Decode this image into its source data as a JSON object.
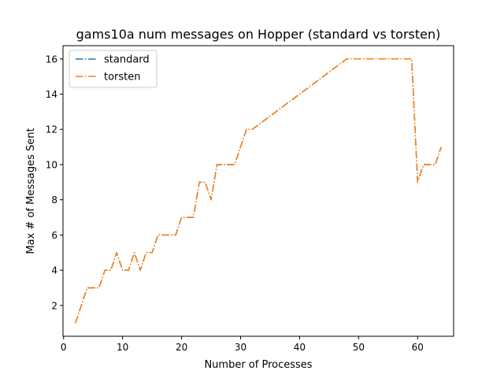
{
  "chart_data": {
    "type": "line",
    "title": "gams10a num messages on Hopper (standard vs torsten)",
    "xlabel": "Number of Processes",
    "ylabel": "Max # of Messages Sent",
    "xlim": [
      -0.1,
      66.1
    ],
    "ylim": [
      0.25,
      16.75
    ],
    "xticks": [
      0,
      10,
      20,
      30,
      40,
      50,
      60
    ],
    "yticks": [
      2,
      4,
      6,
      8,
      10,
      12,
      14,
      16
    ],
    "legend_position": "upper-left",
    "grid": false,
    "x": [
      2,
      3,
      4,
      5,
      6,
      7,
      8,
      9,
      10,
      11,
      12,
      13,
      14,
      15,
      16,
      17,
      18,
      19,
      20,
      21,
      22,
      23,
      24,
      25,
      26,
      27,
      28,
      29,
      30,
      31,
      32,
      48,
      49,
      50,
      51,
      52,
      53,
      54,
      55,
      56,
      57,
      58,
      59,
      60,
      61,
      62,
      63,
      64
    ],
    "series": [
      {
        "name": "standard",
        "color": "#1f77b4",
        "linestyle": "dashdot",
        "values": [
          1,
          2,
          3,
          3,
          3,
          4,
          4,
          5,
          4,
          4,
          5,
          4,
          5,
          5,
          6,
          6,
          6,
          6,
          7,
          7,
          7,
          9,
          9,
          8,
          10,
          10,
          10,
          10,
          11,
          12,
          12,
          16,
          16,
          16,
          16,
          16,
          16,
          16,
          16,
          16,
          16,
          16,
          16,
          9,
          10,
          10,
          10,
          11
        ]
      },
      {
        "name": "torsten",
        "color": "#ff7f0e",
        "linestyle": "dashdot",
        "values": [
          1,
          2,
          3,
          3,
          3,
          4,
          4,
          5,
          4,
          4,
          5,
          4,
          5,
          5,
          6,
          6,
          6,
          6,
          7,
          7,
          7,
          9,
          9,
          8,
          10,
          10,
          10,
          10,
          11,
          12,
          12,
          16,
          16,
          16,
          16,
          16,
          16,
          16,
          16,
          16,
          16,
          16,
          16,
          9,
          10,
          10,
          10,
          11
        ]
      }
    ]
  }
}
